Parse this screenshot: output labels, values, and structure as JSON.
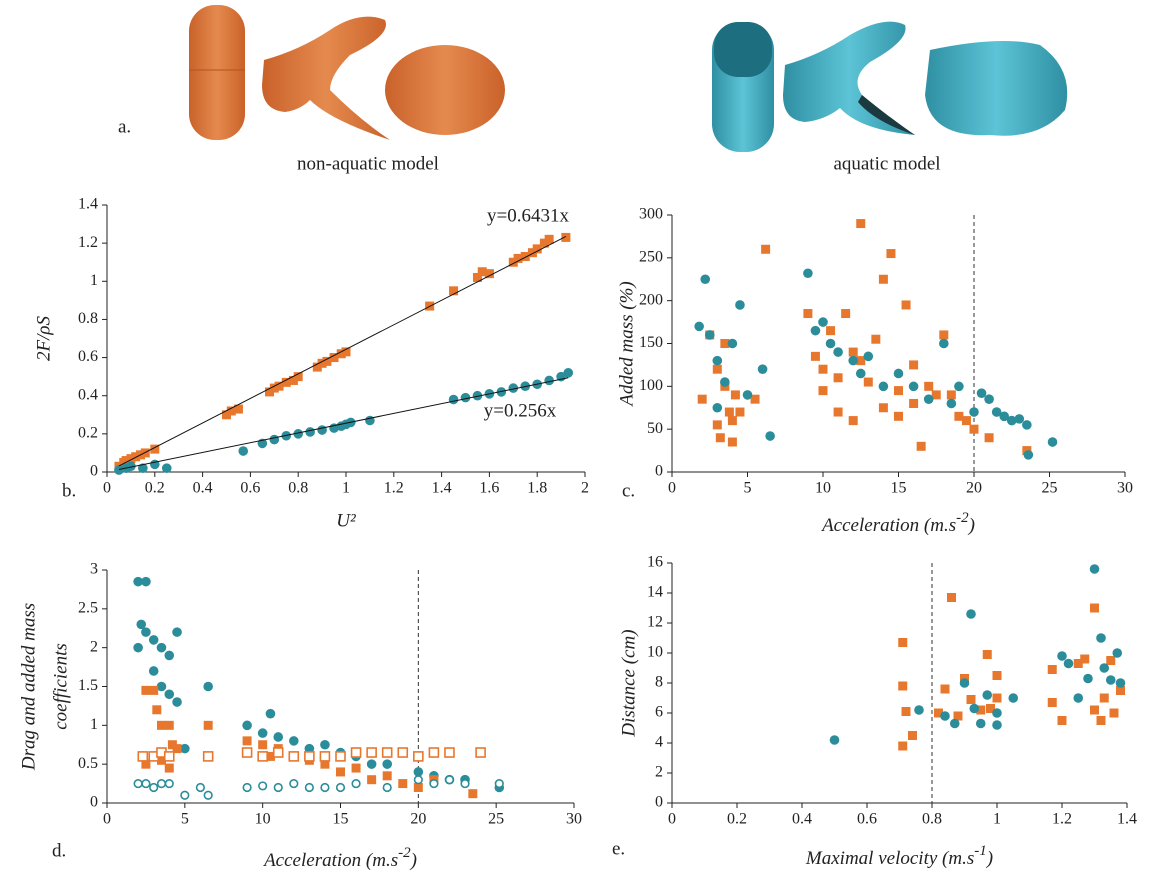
{
  "figure": {
    "panel_label": "a.",
    "left_caption": "non-aquatic model",
    "right_caption": "aquatic model"
  },
  "chart_data": [
    {
      "type": "scatter",
      "panel_label": "b.",
      "xlabel": "U²",
      "ylabel": "2F/ρS",
      "xlim": [
        0,
        2
      ],
      "xticks": [
        0,
        0.2,
        0.4,
        0.6,
        0.8,
        1,
        1.2,
        1.4,
        1.6,
        1.8,
        2
      ],
      "ylim": [
        0,
        1.4
      ],
      "yticks": [
        0,
        0.2,
        0.4,
        0.6,
        0.8,
        1,
        1.2,
        1.4
      ],
      "annotations": [
        "y=0.6431x",
        "y=0.256x"
      ],
      "series": [
        {
          "marker": "square",
          "filled": true,
          "color": "#e8772e",
          "x": [
            0.05,
            0.07,
            0.08,
            0.1,
            0.12,
            0.14,
            0.16,
            0.2,
            0.5,
            0.52,
            0.55,
            0.68,
            0.7,
            0.72,
            0.75,
            0.78,
            0.8,
            0.88,
            0.9,
            0.92,
            0.95,
            0.98,
            1.0,
            1.35,
            1.45,
            1.55,
            1.57,
            1.6,
            1.7,
            1.72,
            1.75,
            1.78,
            1.8,
            1.83,
            1.85,
            1.92
          ],
          "values": [
            0.03,
            0.05,
            0.06,
            0.07,
            0.08,
            0.09,
            0.1,
            0.12,
            0.3,
            0.32,
            0.33,
            0.42,
            0.44,
            0.45,
            0.47,
            0.48,
            0.5,
            0.55,
            0.57,
            0.58,
            0.6,
            0.62,
            0.63,
            0.87,
            0.95,
            1.02,
            1.05,
            1.04,
            1.1,
            1.12,
            1.13,
            1.15,
            1.17,
            1.2,
            1.22,
            1.23
          ]
        },
        {
          "marker": "circle",
          "filled": true,
          "color": "#2b8c9a",
          "x": [
            0.05,
            0.08,
            0.1,
            0.15,
            0.2,
            0.25,
            0.57,
            0.65,
            0.7,
            0.75,
            0.8,
            0.85,
            0.9,
            0.95,
            0.98,
            1.0,
            1.02,
            1.1,
            1.45,
            1.5,
            1.55,
            1.6,
            1.65,
            1.7,
            1.75,
            1.8,
            1.85,
            1.9,
            1.93
          ],
          "values": [
            0.01,
            0.02,
            0.03,
            0.02,
            0.04,
            0.02,
            0.11,
            0.15,
            0.17,
            0.19,
            0.2,
            0.21,
            0.22,
            0.23,
            0.24,
            0.25,
            0.26,
            0.27,
            0.38,
            0.39,
            0.4,
            0.41,
            0.42,
            0.44,
            0.45,
            0.46,
            0.48,
            0.5,
            0.52
          ]
        },
        {
          "marker": "line",
          "color": "#111",
          "x": [
            0.05,
            1.92
          ],
          "values": [
            0.032,
            1.235
          ]
        },
        {
          "marker": "line",
          "color": "#111",
          "x": [
            0.05,
            1.93
          ],
          "values": [
            0.013,
            0.494
          ]
        }
      ]
    },
    {
      "type": "scatter",
      "panel_label": "c.",
      "xlabel": {
        "text": "Acceleration (m.s",
        "sup": "-2",
        "tail": ")"
      },
      "ylabel": "Added mass (%)",
      "xlim": [
        0,
        30
      ],
      "xticks": [
        0,
        5,
        10,
        15,
        20,
        25,
        30
      ],
      "ylim": [
        0,
        300
      ],
      "yticks": [
        0,
        50,
        100,
        150,
        200,
        250,
        300
      ],
      "vline": 20,
      "series": [
        {
          "marker": "square",
          "filled": true,
          "color": "#e8772e",
          "x": [
            2,
            2.5,
            3,
            3,
            3.2,
            3.5,
            3.5,
            3.8,
            4,
            4,
            4.2,
            4.5,
            5.5,
            6.2,
            9,
            9.5,
            10,
            10,
            10.5,
            11,
            11.5,
            12,
            12.5,
            12.5,
            13,
            13.5,
            14,
            14.5,
            15,
            15.5,
            16,
            16.5,
            17,
            17.5,
            18,
            18.5,
            19,
            19.5,
            20,
            21,
            23.5,
            11,
            12,
            14,
            15,
            16
          ],
          "values": [
            85,
            160,
            120,
            55,
            40,
            150,
            100,
            70,
            60,
            35,
            90,
            70,
            85,
            260,
            185,
            135,
            120,
            95,
            165,
            110,
            185,
            140,
            290,
            130,
            105,
            155,
            75,
            255,
            95,
            195,
            80,
            30,
            100,
            90,
            160,
            90,
            65,
            60,
            50,
            40,
            25,
            70,
            60,
            225,
            65,
            125
          ]
        },
        {
          "marker": "circle",
          "filled": true,
          "color": "#2b8c9a",
          "x": [
            1.8,
            2.2,
            2.5,
            3,
            3,
            3.5,
            4,
            4.5,
            5,
            6,
            6.5,
            9,
            9.5,
            10,
            10.5,
            11,
            12,
            12.5,
            13,
            14,
            15,
            16,
            17,
            18,
            18.5,
            19,
            20,
            20.5,
            21,
            21.5,
            22,
            22.5,
            23,
            23.5,
            25.2,
            23.6
          ],
          "values": [
            170,
            225,
            160,
            130,
            75,
            105,
            150,
            195,
            90,
            120,
            42,
            232,
            165,
            175,
            150,
            140,
            130,
            115,
            135,
            100,
            115,
            100,
            85,
            150,
            80,
            100,
            70,
            92,
            85,
            70,
            65,
            60,
            62,
            55,
            35,
            20
          ]
        }
      ]
    },
    {
      "type": "scatter",
      "panel_label": "d.",
      "xlabel": {
        "text": "Acceleration (m.s",
        "sup": "-2",
        "tail": ")"
      },
      "ylabel": [
        "Drag and added mass",
        "coefficients"
      ],
      "xlim": [
        0,
        30
      ],
      "xticks": [
        0,
        5,
        10,
        15,
        20,
        25,
        30
      ],
      "ylim": [
        0,
        3
      ],
      "yticks": [
        0,
        0.5,
        1,
        1.5,
        2,
        2.5,
        3
      ],
      "vline": 20,
      "series": [
        {
          "marker": "circle",
          "filled": true,
          "color": "#2b8c9a",
          "x": [
            2,
            2.5,
            2.2,
            2.5,
            3,
            3.5,
            4,
            4.5,
            3,
            3.5,
            4,
            4.5,
            5,
            6.5,
            2,
            9,
            10,
            10.5,
            11,
            12,
            13,
            14,
            15,
            16,
            17,
            18,
            20,
            21,
            22,
            23,
            25.2
          ],
          "values": [
            2.85,
            2.85,
            2.3,
            2.2,
            2.1,
            2,
            1.9,
            2.2,
            1.7,
            1.5,
            1.4,
            1.3,
            0.7,
            1.5,
            2.0,
            1.0,
            0.9,
            1.15,
            0.85,
            0.8,
            0.7,
            0.75,
            0.65,
            0.6,
            0.5,
            0.5,
            0.4,
            0.35,
            0.3,
            0.3,
            0.2
          ]
        },
        {
          "marker": "square",
          "filled": true,
          "color": "#e8772e",
          "x": [
            2.5,
            3,
            3.2,
            3.5,
            4,
            4.2,
            2.5,
            3,
            3.5,
            4,
            4.5,
            6.5,
            9,
            10,
            10.5,
            11,
            12,
            13,
            14,
            15,
            16,
            17,
            18,
            19,
            20,
            21,
            23.5
          ],
          "values": [
            1.45,
            1.45,
            1.2,
            1.0,
            1.0,
            0.75,
            0.5,
            0.6,
            0.55,
            0.45,
            0.7,
            1.0,
            0.8,
            0.75,
            0.6,
            0.7,
            0.6,
            0.55,
            0.5,
            0.4,
            0.45,
            0.3,
            0.35,
            0.25,
            0.2,
            0.3,
            0.12
          ]
        },
        {
          "marker": "square",
          "filled": false,
          "color": "#e8772e",
          "x": [
            2.3,
            3,
            3.5,
            4,
            6.5,
            9,
            10,
            11,
            12,
            13,
            14,
            15,
            16,
            17,
            18,
            19,
            20,
            21,
            22,
            24
          ],
          "values": [
            0.6,
            0.6,
            0.65,
            0.6,
            0.6,
            0.65,
            0.6,
            0.65,
            0.6,
            0.6,
            0.6,
            0.6,
            0.65,
            0.65,
            0.65,
            0.65,
            0.6,
            0.65,
            0.65,
            0.65
          ]
        },
        {
          "marker": "circle",
          "filled": false,
          "color": "#2b8c9a",
          "x": [
            2,
            2.5,
            3,
            3.5,
            4,
            5,
            6,
            6.5,
            9,
            10,
            11,
            12,
            13,
            14,
            15,
            16,
            18,
            20,
            21,
            22,
            23,
            25.2
          ],
          "values": [
            0.25,
            0.25,
            0.2,
            0.25,
            0.25,
            0.1,
            0.2,
            0.1,
            0.2,
            0.22,
            0.2,
            0.25,
            0.2,
            0.2,
            0.2,
            0.25,
            0.2,
            0.3,
            0.25,
            0.3,
            0.25,
            0.25
          ]
        }
      ]
    },
    {
      "type": "scatter",
      "panel_label": "e.",
      "xlabel": {
        "text": "Maximal velocity (m.s",
        "sup": "-1",
        "tail": ")"
      },
      "ylabel": "Distance (cm)",
      "xlim": [
        0,
        1.4
      ],
      "xticks": [
        0,
        0.2,
        0.4,
        0.6,
        0.8,
        1,
        1.2,
        1.4
      ],
      "ylim": [
        0,
        16
      ],
      "yticks": [
        0,
        2,
        4,
        6,
        8,
        10,
        12,
        14,
        16
      ],
      "vline": 0.8,
      "series": [
        {
          "marker": "square",
          "filled": true,
          "color": "#e8772e",
          "x": [
            0.71,
            0.71,
            0.72,
            0.71,
            0.74,
            0.82,
            0.84,
            0.86,
            0.88,
            0.9,
            0.92,
            0.95,
            0.97,
            0.98,
            1.0,
            1.0,
            1.17,
            1.17,
            1.2,
            1.25,
            1.27,
            1.3,
            1.3,
            1.32,
            1.33,
            1.35,
            1.36,
            1.38
          ],
          "values": [
            10.7,
            7.8,
            6.1,
            3.8,
            4.5,
            6,
            7.6,
            13.7,
            5.8,
            8.3,
            6.9,
            6.2,
            9.9,
            6.3,
            7,
            8.5,
            8.9,
            6.7,
            5.5,
            9.3,
            9.6,
            13,
            6.2,
            5.5,
            7,
            9.5,
            6,
            7.5
          ]
        },
        {
          "marker": "circle",
          "filled": true,
          "color": "#2b8c9a",
          "x": [
            0.5,
            0.76,
            0.84,
            0.87,
            0.9,
            0.92,
            0.93,
            0.95,
            0.97,
            1.0,
            1.0,
            1.05,
            1.2,
            1.22,
            1.25,
            1.28,
            1.3,
            1.32,
            1.33,
            1.35,
            1.37,
            1.38
          ],
          "values": [
            4.2,
            6.2,
            5.8,
            5.3,
            8,
            12.6,
            6.3,
            5.3,
            7.2,
            5.2,
            6.0,
            7,
            9.8,
            9.3,
            7,
            8.3,
            15.6,
            11,
            9,
            8.2,
            10,
            8
          ]
        }
      ]
    }
  ]
}
